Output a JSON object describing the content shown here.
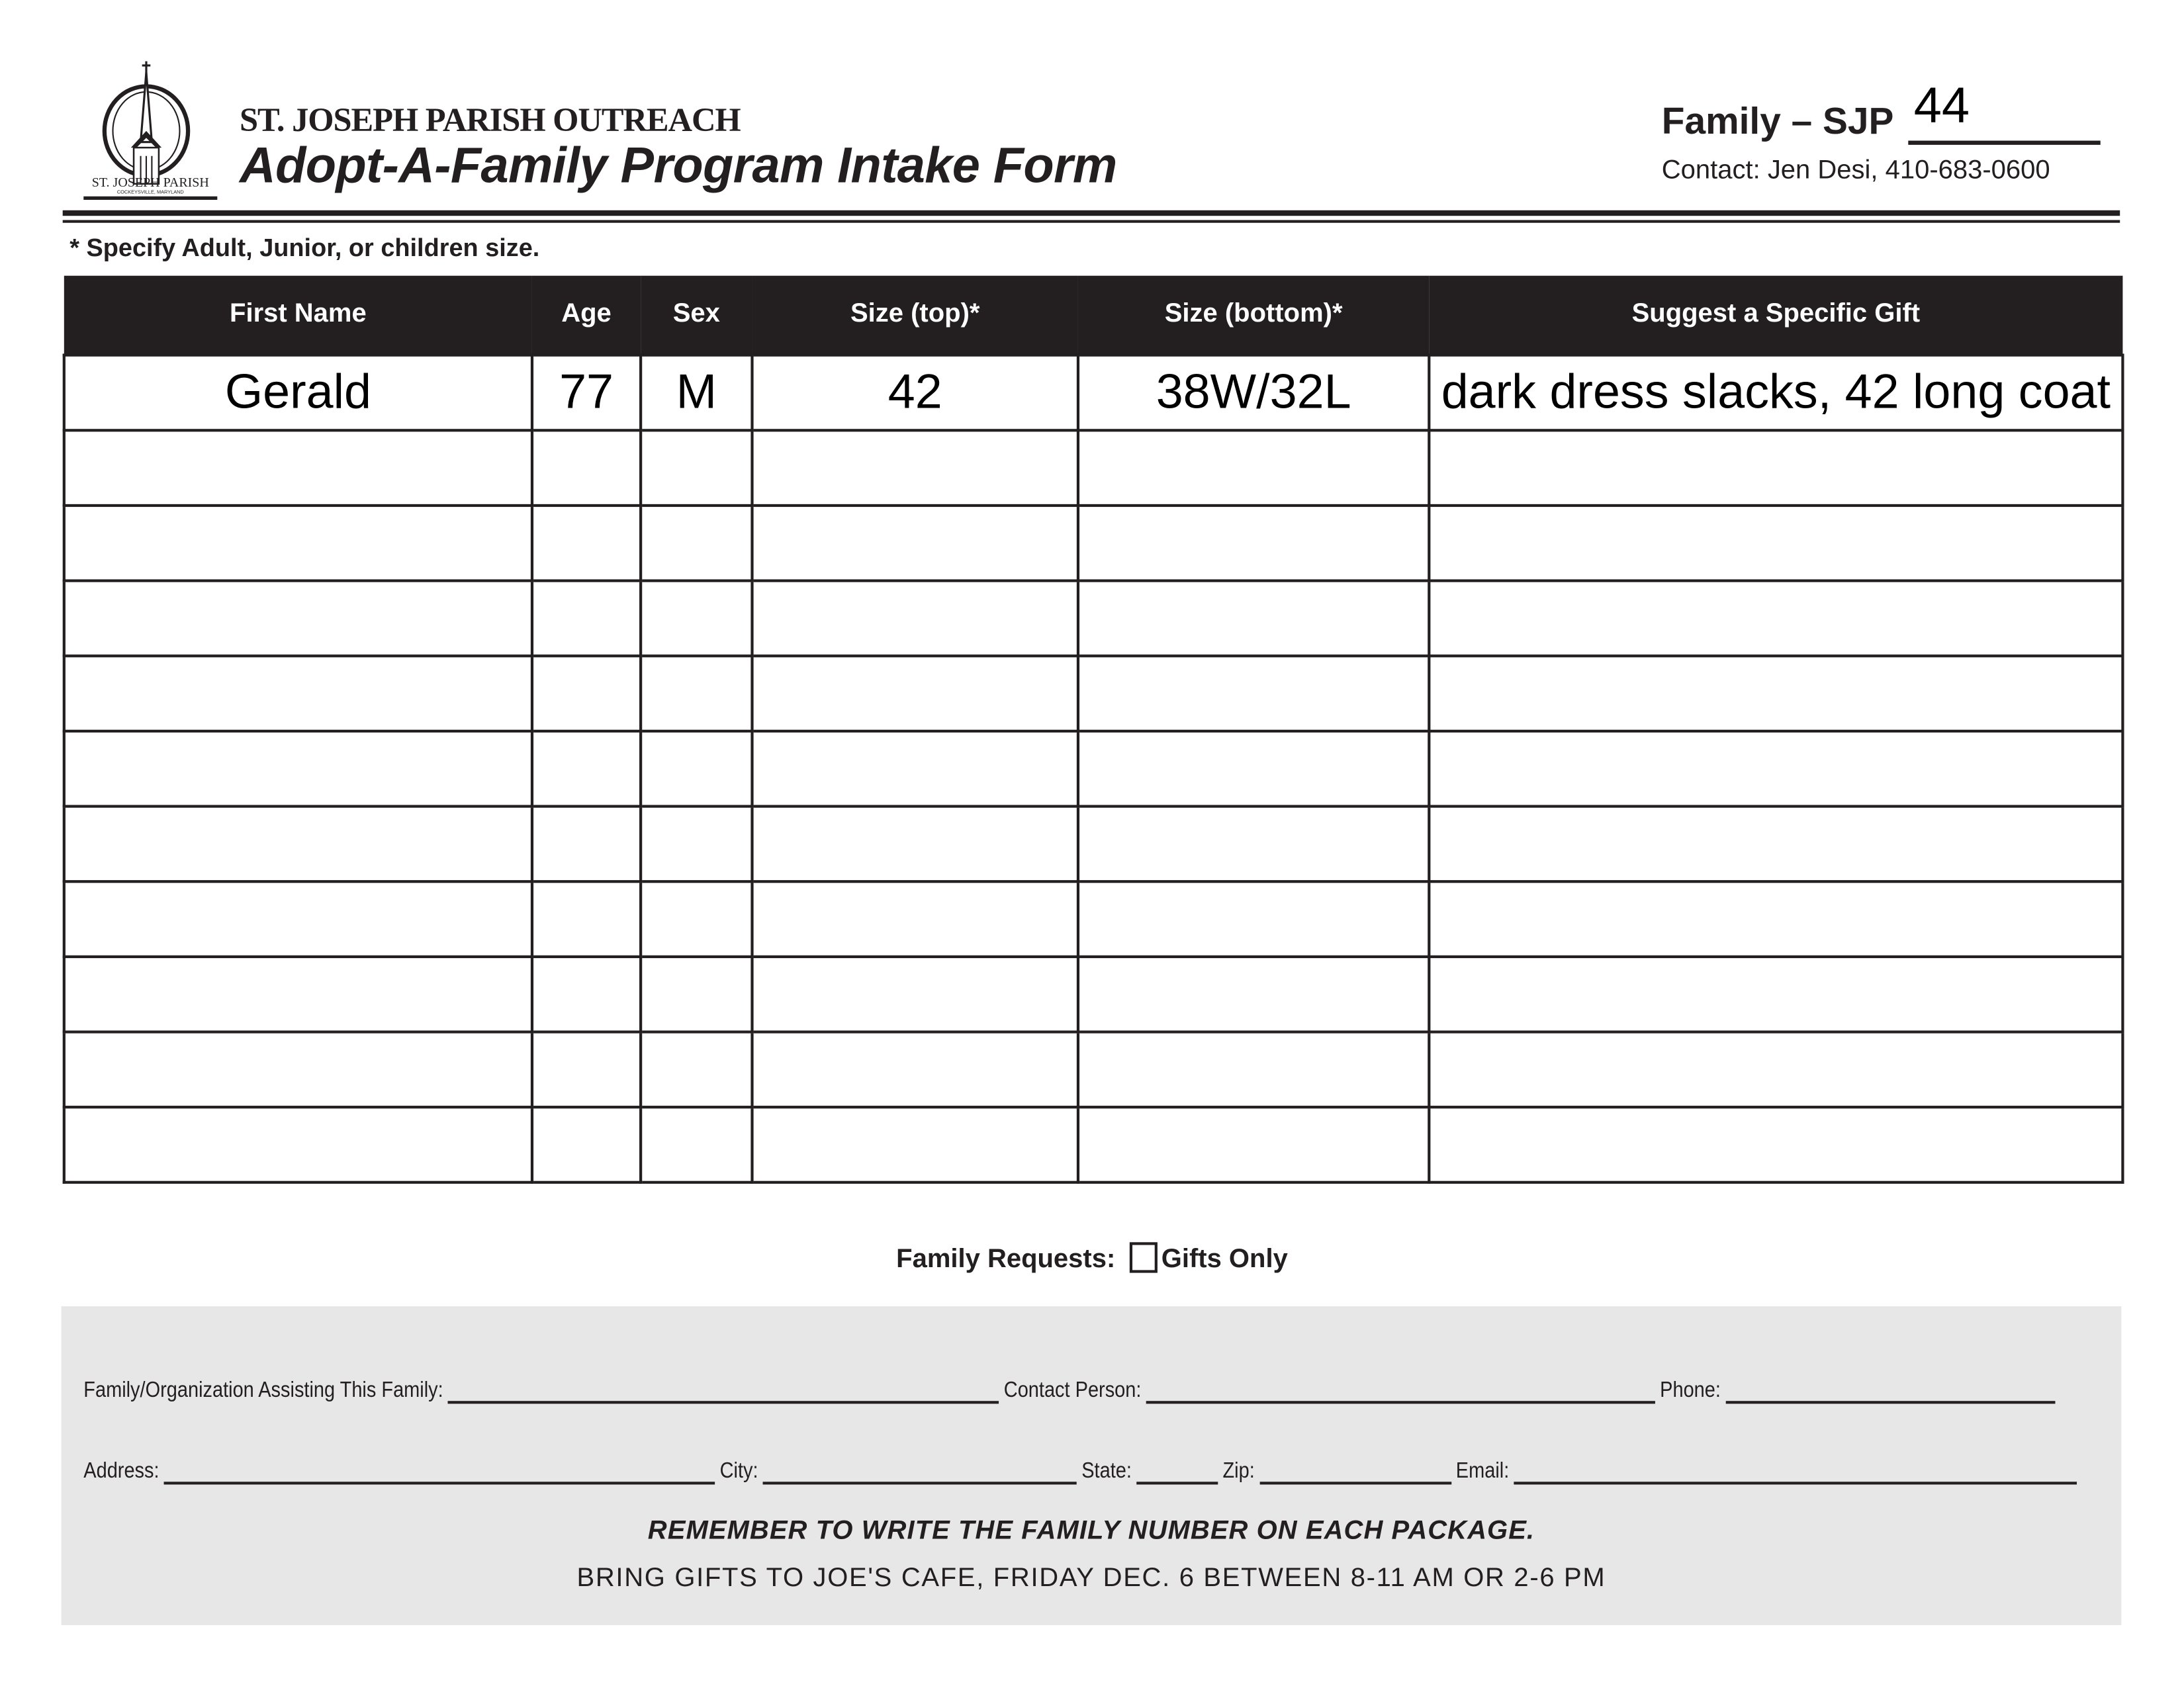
{
  "header": {
    "logo_text": "ST. JOSEPH PARISH",
    "logo_subtext": "COCKEYSVILLE, MARYLAND",
    "organization": "ST. JOSEPH PARISH OUTREACH",
    "title": "Adopt-A-Family Program Intake Form",
    "family_label": "Family – SJP",
    "family_number": "44",
    "contact": "Contact: Jen Desi, 410-683-0600"
  },
  "note": "* Specify Adult, Junior, or children size.",
  "table": {
    "columns": [
      "First Name",
      "Age",
      "Sex",
      "Size (top)*",
      "Size (bottom)*",
      "Suggest a Specific Gift"
    ],
    "rows": [
      [
        "Gerald",
        "77",
        "M",
        "42",
        "38W/32L",
        "dark dress slacks, 42 long coat"
      ],
      [
        "",
        "",
        "",
        "",
        "",
        ""
      ],
      [
        "",
        "",
        "",
        "",
        "",
        ""
      ],
      [
        "",
        "",
        "",
        "",
        "",
        ""
      ],
      [
        "",
        "",
        "",
        "",
        "",
        ""
      ],
      [
        "",
        "",
        "",
        "",
        "",
        ""
      ],
      [
        "",
        "",
        "",
        "",
        "",
        ""
      ],
      [
        "",
        "",
        "",
        "",
        "",
        ""
      ],
      [
        "",
        "",
        "",
        "",
        "",
        ""
      ],
      [
        "",
        "",
        "",
        "",
        "",
        ""
      ],
      [
        "",
        "",
        "",
        "",
        "",
        ""
      ]
    ]
  },
  "requests": {
    "label": "Family Requests:",
    "option": "Gifts Only",
    "checked": false
  },
  "footer": {
    "assisting_label": "Family/Organization Assisting This Family:",
    "contact_person_label": "Contact Person:",
    "phone_label": "Phone:",
    "address_label": "Address:",
    "city_label": "City:",
    "state_label": "State:",
    "zip_label": "Zip:",
    "email_label": "Email:",
    "reminder": "REMEMBER TO WRITE THE FAMILY NUMBER ON EACH PACKAGE.",
    "dropoff": "BRING GIFTS TO JOE'S CAFE, FRIDAY DEC. 6 BETWEEN  8-11 AM OR 2-6 PM"
  },
  "colors": {
    "ink": "#231f20",
    "panel": "#e8e7e8"
  }
}
